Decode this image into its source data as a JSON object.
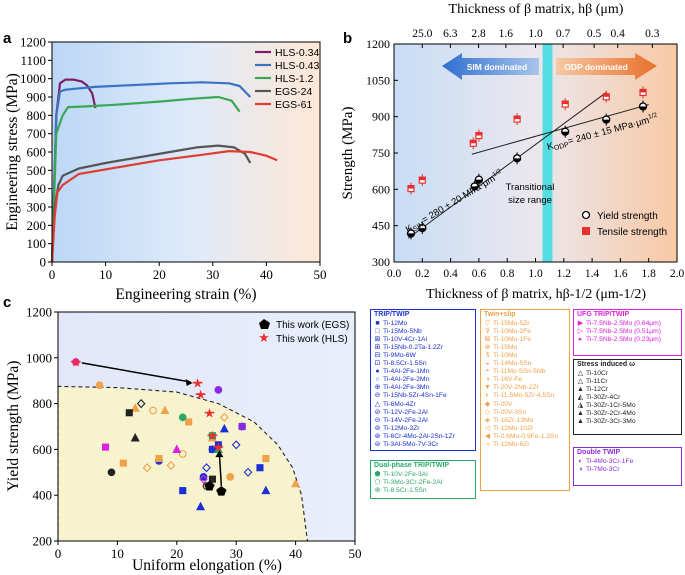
{
  "panel_a": {
    "label": "a",
    "chart_data": {
      "type": "line",
      "xlabel": "Engineering strain (%)",
      "ylabel": "Engineering stress (MPa)",
      "xlim": [
        0,
        50
      ],
      "ylim": [
        0,
        1200
      ],
      "xticks": [
        "0",
        "10",
        "20",
        "30",
        "40",
        "50"
      ],
      "yticks": [
        "0",
        "100",
        "200",
        "300",
        "400",
        "500",
        "600",
        "700",
        "800",
        "900",
        "1000",
        "1100",
        "1200"
      ],
      "series": [
        {
          "name": "HLS-0.34",
          "color": "#7b1f6a",
          "x": [
            0,
            0.8,
            1.5,
            2.5,
            4,
            5.5,
            6.5,
            7.5,
            8.1
          ],
          "y": [
            0,
            800,
            975,
            995,
            995,
            985,
            965,
            920,
            840
          ]
        },
        {
          "name": "HLS-0.43",
          "color": "#3b73c4",
          "x": [
            0,
            0.8,
            1.5,
            2.5,
            8,
            15,
            22,
            28,
            33,
            35,
            37
          ],
          "y": [
            0,
            800,
            930,
            940,
            955,
            965,
            975,
            980,
            975,
            960,
            900
          ]
        },
        {
          "name": "HLS-1.2",
          "color": "#3aa757",
          "x": [
            0,
            0.8,
            2,
            3,
            6,
            12,
            20,
            26,
            31,
            33.5,
            35
          ],
          "y": [
            0,
            700,
            800,
            845,
            848,
            858,
            875,
            890,
            900,
            880,
            820
          ]
        },
        {
          "name": "EGS-24",
          "color": "#555555",
          "x": [
            0,
            0.5,
            1.2,
            2,
            5,
            10,
            16,
            22,
            27,
            31,
            34,
            36,
            37
          ],
          "y": [
            0,
            300,
            420,
            470,
            510,
            540,
            570,
            600,
            625,
            635,
            625,
            590,
            540
          ]
        },
        {
          "name": "EGS-61",
          "color": "#e03c31",
          "x": [
            0,
            0.5,
            1,
            2,
            5,
            12,
            20,
            28,
            33,
            37,
            40,
            42
          ],
          "y": [
            0,
            250,
            380,
            420,
            480,
            515,
            555,
            585,
            605,
            600,
            580,
            555
          ]
        }
      ]
    }
  },
  "panel_b": {
    "label": "b",
    "top_axis_label": "Thickness of β matrix, hβ (μm)",
    "top_ticks": [
      "25.0",
      "6.3",
      "2.8",
      "1.6",
      "1.0",
      "0.7",
      "0.5",
      "0.4",
      "0.3"
    ],
    "sim_label": "SIM dominated",
    "odp_label": "ODP dominated",
    "transition_label_1": "Transitional",
    "transition_label_2": "size range",
    "k_sim_label": "K",
    "k_sim_sub": "SIM",
    "k_sim_value": "= 280 ± 20 MPa·μm",
    "k_odp_label": "K",
    "k_odp_sub": "ODP",
    "k_odp_value": "= 240 ± 15 MPa·μm",
    "exponent": "1/2",
    "legend_yield": "Yield strength",
    "legend_tensile": "Tensile strength",
    "chart_data": {
      "type": "scatter",
      "xlabel": "Thickness of β matrix, hβ-1/2 (μm-1/2)",
      "ylabel": "Strength (MPa)",
      "xlim": [
        0,
        2.0
      ],
      "ylim": [
        300,
        1200
      ],
      "xticks": [
        "0.0",
        "0.2",
        "0.4",
        "0.6",
        "0.8",
        "1.0",
        "1.2",
        "1.4",
        "1.6",
        "1.8",
        "2.0"
      ],
      "yticks": [
        "300",
        "450",
        "600",
        "750",
        "900",
        "1050",
        "1200"
      ],
      "transition_range": [
        1.05,
        1.12
      ],
      "series": [
        {
          "name": "Yield strength",
          "x": [
            0.12,
            0.2,
            0.57,
            0.6,
            0.87,
            1.21,
            1.5,
            1.76
          ],
          "y": [
            418,
            440,
            612,
            640,
            728,
            838,
            888,
            942
          ]
        },
        {
          "name": "Tensile strength",
          "x": [
            0.12,
            0.2,
            0.56,
            0.6,
            0.87,
            1.21,
            1.5,
            1.76
          ],
          "y": [
            603,
            638,
            790,
            822,
            890,
            952,
            982,
            1000
          ]
        },
        {
          "name": "Fit SIM",
          "x": [
            0.1,
            1.5
          ],
          "y": [
            398,
            1000
          ]
        },
        {
          "name": "Fit ODP",
          "x": [
            0.55,
            1.8
          ],
          "y": [
            745,
            950
          ]
        }
      ]
    }
  },
  "panel_c": {
    "label": "c",
    "legend_egs": "This work (EGS)",
    "legend_hls": "This work (HLS)",
    "chart_data": {
      "type": "scatter",
      "xlabel": "Uniform elongation (%)",
      "ylabel": "Yield strength (MPa)",
      "xlim": [
        0,
        50
      ],
      "ylim": [
        200,
        1200
      ],
      "xticks": [
        "0",
        "10",
        "20",
        "30",
        "40",
        "50"
      ],
      "yticks": [
        "200",
        "400",
        "600",
        "800",
        "1000",
        "1200"
      ],
      "series": [
        {
          "name": "This work (EGS)",
          "x": [
            25.5,
            27.5
          ],
          "y": [
            440,
            418
          ]
        },
        {
          "name": "This work (HLS)",
          "x": [
            3,
            23.5,
            24,
            25.5,
            26,
            27
          ],
          "y": [
            982,
            890,
            840,
            760,
            660,
            610
          ]
        },
        {
          "name": "TRIP/TWIP",
          "x": [
            17,
            21,
            24,
            25,
            26,
            27,
            28,
            30,
            31,
            34,
            35,
            32,
            24.5,
            26
          ],
          "y": [
            550,
            420,
            350,
            520,
            600,
            620,
            690,
            620,
            700,
            520,
            420,
            500,
            480,
            600
          ]
        },
        {
          "name": "Twin+slip",
          "x": [
            7,
            11,
            13,
            15,
            16,
            17,
            18,
            19,
            21,
            22,
            26,
            28,
            29,
            35,
            40
          ],
          "y": [
            880,
            540,
            780,
            520,
            770,
            560,
            770,
            530,
            580,
            720,
            650,
            740,
            480,
            560,
            450
          ]
        },
        {
          "name": "UFG TRIP/TWIP",
          "x": [
            3,
            8,
            20,
            24.5
          ],
          "y": [
            982,
            610,
            600,
            470
          ]
        },
        {
          "name": "Stress induced ω",
          "x": [
            9,
            12,
            13,
            14,
            25,
            26
          ],
          "y": [
            500,
            760,
            650,
            800,
            440,
            470
          ]
        },
        {
          "name": "Double TWIP",
          "x": [
            27,
            31
          ],
          "y": [
            860,
            700
          ]
        },
        {
          "name": "Dual-phase TRIP/TWIP",
          "x": [
            21,
            26,
            27
          ],
          "y": [
            740,
            660,
            600
          ]
        }
      ]
    },
    "legend_trip_twip": {
      "title": "TRIP/TWIP",
      "items": [
        "Ti-12Mo",
        "Ti-15Mo-5Nb",
        "Ti-10V-4Cr-1Al",
        "Ti-15Nb-0.2Ta-1.2Zr",
        "Ti-9Mo-6W",
        "Ti-8.5Cr-1.5Sn",
        "Ti-4Al-2Fe-1Mn",
        "Ti-4Al-2Fe-2Mn",
        "Ti-4Al-2Fe-3Mn",
        "Ti-15Nb-5Zr-4Sn-1Fe",
        "Ti-6Mo-4Zr",
        "Ti-12V-2Fe-2Al",
        "Ti-14V-2Fe-2Al",
        "Ti-12Mo-3Zr",
        "Ti-6Cr-4Mo-2Al-2Sn-1Zr",
        "Ti-3Al-5Mo-7V-3Cr"
      ]
    },
    "legend_dual": {
      "title": "Dual-phase TRIP/TWIP",
      "items": [
        "Ti-10V-2Fe-3Al",
        "Ti-3Mo-3Cr-2Fe-2Al",
        "Ti-8.5Cr-1.5Sn"
      ]
    },
    "legend_twin_slip": {
      "title": "Twin+slip",
      "items": [
        "Ti-15Mo-5Zr",
        "Ti-10Mo-2Fe",
        "Ti-10Mo-1Fe",
        "Ti-15Mo",
        "Ti-10Mo",
        "Ti-14Mo-5Sn",
        "Ti-11Mo-5Sn-5Nb",
        "Ti-16V-Fe",
        "Ti-20V-2Nb-2Zr",
        "Ti-11.5Mo-5Zr-4.5Sn",
        "Ti-20V",
        "Ti-20V-3Sn",
        "Ti-18Zr-13Mo",
        "Ti-12Mo-10Zr",
        "Ti-2.6Mo-0.9Fe-1.3Sn",
        "Ti-12Mo-6Zr"
      ]
    },
    "legend_ufg": {
      "title": "UFG TRIP/TWIP",
      "items": [
        "Ti-7.5Nb-2.5Mo (0.64μm)",
        "Ti-7.5Nb-2.5Mo (0.51μm)",
        "Ti-7.5Nb-2.5Mo (0.23μm)"
      ]
    },
    "legend_omega": {
      "title": "Stress induced ω",
      "items": [
        "Ti-10Cr",
        "Ti-11Cr",
        "Ti-12Cr",
        "Ti-30Zr-4Cr",
        "Ti-30Zr-1Cr-5Mo",
        "Ti-30Zr-2Cr-4Mo",
        "Ti-30Zr-3Cr-3Mo"
      ]
    },
    "legend_double": {
      "title": "Double TWIP",
      "items": [
        "Ti-4Mo-3Cr-1Fe",
        "Ti-7Mo-3Cr"
      ]
    }
  },
  "colors": {
    "trip": "#1a2fd6",
    "twin": "#f0a24a",
    "ufg": "#e020e0",
    "omega": "#222222",
    "double": "#8a2be2",
    "dual": "#2aa868",
    "hls": "#e8302e"
  }
}
